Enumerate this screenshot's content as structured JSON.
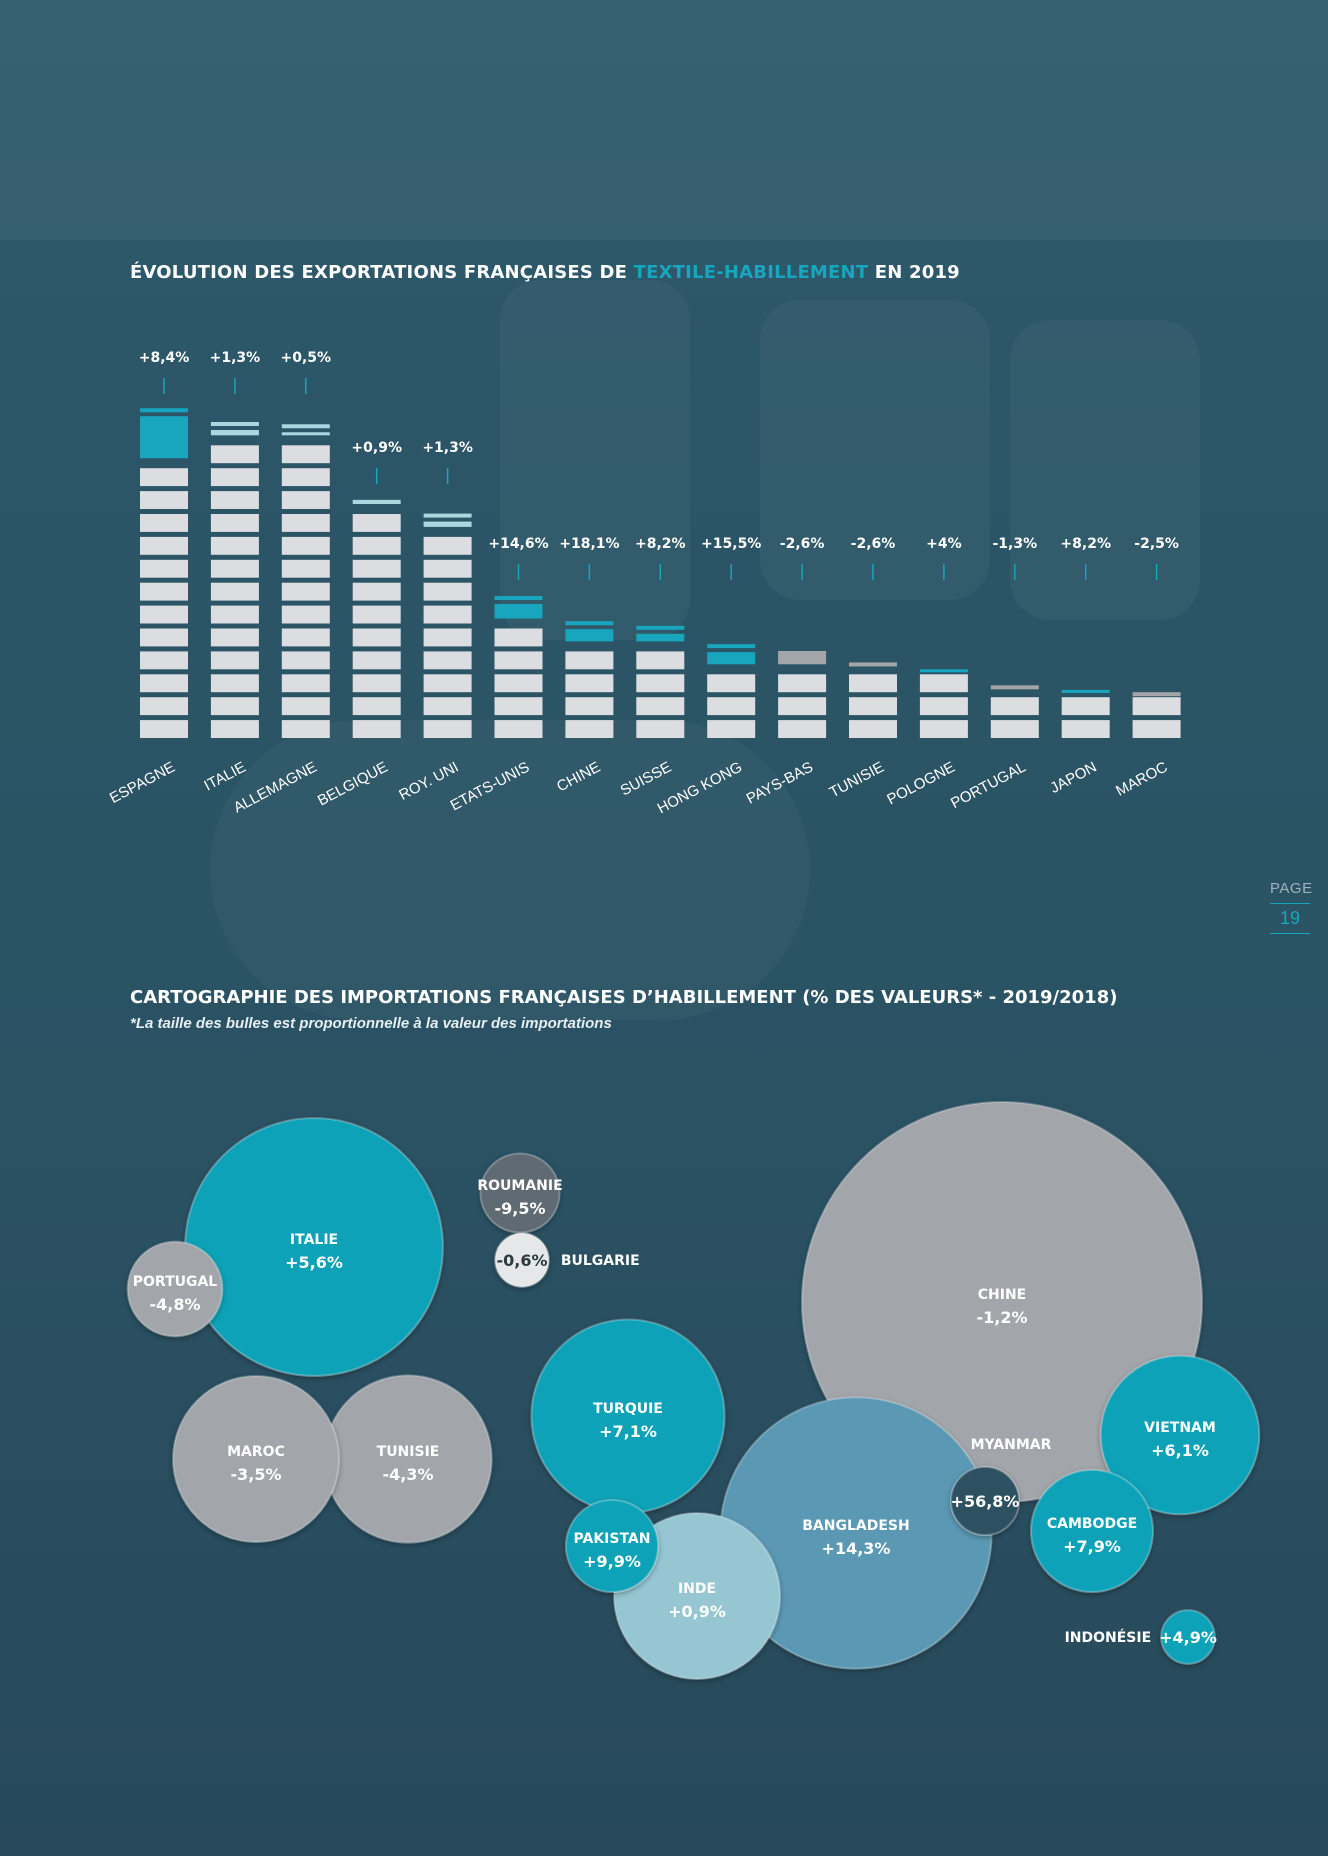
{
  "export_chart": {
    "title_prefix": "ÉVOLUTION DES EXPORTATIONS FRANÇAISES DE ",
    "title_accent": "TEXTILE-HABILLEMENT",
    "title_suffix": " EN 2019"
  },
  "import_map": {
    "title": "CARTOGRAPHIE DES IMPORTATIONS FRANÇAISES D’HABILLEMENT (% DES VALEURS* - 2019/2018)",
    "note": "*La taille des bulles est proportionnelle à la valeur des importations"
  },
  "page": {
    "label": "PAGE",
    "number": "19"
  },
  "colors": {
    "accent": "#17a6bd",
    "bar_segment": "#dcdde0",
    "bar_increase": "#17a6bd",
    "bar_increase_light": "#a9d7df",
    "bar_decrease": "#a3a5a9",
    "bubble_teal": "#0fa2b7",
    "bubble_gray": "#a2a5aa",
    "bubble_blue": "#5a98b3",
    "bubble_light": "#95c6d2",
    "bubble_dark": "#5f6a73",
    "bubble_white": "#e6e7e9",
    "bubble_navy": "#2f5162"
  },
  "chart_data": [
    {
      "type": "bar",
      "title": "ÉVOLUTION DES EXPORTATIONS FRANÇAISES DE TEXTILE-HABILLEMENT EN 2019",
      "categories": [
        "ESPAGNE",
        "ITALIE",
        "ALLEMAGNE",
        "BELGIQUE",
        "ROY. UNI",
        "ETATS-UNIS",
        "CHINE",
        "SUISSE",
        "HONG KONG",
        "PAYS-BAS",
        "TUNISIE",
        "POLOGNE",
        "PORTUGAL",
        "JAPON",
        "MAROC"
      ],
      "values": [
        14.4,
        13.8,
        13.7,
        10.4,
        9.8,
        6.2,
        5.1,
        4.9,
        4.1,
        3.8,
        3.3,
        3.0,
        2.3,
        2.1,
        2.0
      ],
      "change_labels": [
        "+8,4%",
        "+1,3%",
        "+0,5%",
        "+0,9%",
        "+1,3%",
        "+14,6%",
        "+18,1%",
        "+8,2%",
        "+15,5%",
        "-2,6%",
        "-2,6%",
        "+4%",
        "-1,3%",
        "+8,2%",
        "-2,5%"
      ],
      "changes": [
        8.4,
        1.3,
        0.5,
        0.9,
        1.3,
        14.6,
        18.1,
        8.2,
        15.5,
        -2.6,
        -2.6,
        4,
        -1.3,
        8.2,
        -2.5
      ],
      "ylim": [
        0,
        15
      ],
      "grid": false,
      "legend": "none"
    },
    {
      "type": "bubble",
      "title": "CARTOGRAPHIE DES IMPORTATIONS FRANÇAISES D’HABILLEMENT (% DES VALEURS* - 2019/2018)",
      "bubbles": [
        {
          "name": "CHINE",
          "change": "-1,2%",
          "value": 100,
          "color": "gray",
          "label_side": "inside"
        },
        {
          "name": "ITALIE",
          "change": "+5,6%",
          "value": 41.5,
          "color": "teal",
          "label_side": "inside"
        },
        {
          "name": "BANGLADESH",
          "change": "+14,3%",
          "value": 46,
          "color": "blue",
          "label_side": "inside"
        },
        {
          "name": "TURQUIE",
          "change": "+7,1%",
          "value": 23.3,
          "color": "teal",
          "label_side": "inside"
        },
        {
          "name": "INDE",
          "change": "+0,9%",
          "value": 17.2,
          "color": "light",
          "label_side": "inside"
        },
        {
          "name": "MAROC",
          "change": "-3,5%",
          "value": 17.2,
          "color": "gray",
          "label_side": "inside"
        },
        {
          "name": "TUNISIE",
          "change": "-4,3%",
          "value": 17.5,
          "color": "gray",
          "label_side": "inside"
        },
        {
          "name": "VIETNAM",
          "change": "+6,1%",
          "value": 15.7,
          "color": "teal",
          "label_side": "inside"
        },
        {
          "name": "CAMBODGE",
          "change": "+7,9%",
          "value": 9.3,
          "color": "teal",
          "label_side": "inside"
        },
        {
          "name": "PAKISTAN",
          "change": "+9,9%",
          "value": 5.3,
          "color": "teal",
          "label_side": "inside"
        },
        {
          "name": "PORTUGAL",
          "change": "-4,8%",
          "value": 5.6,
          "color": "gray",
          "label_side": "inside"
        },
        {
          "name": "ROUMANIE",
          "change": "-9,5%",
          "value": 3.9,
          "color": "dark",
          "label_side": "inside"
        },
        {
          "name": "MYANMAR",
          "change": "+56,8%",
          "value": 2.9,
          "color": "navy",
          "label_side": "above"
        },
        {
          "name": "BULGARIE",
          "change": "-0,6%",
          "value": 1.8,
          "color": "white",
          "label_side": "right"
        },
        {
          "name": "INDONÉSIE",
          "change": "+4,9%",
          "value": 1.8,
          "color": "teal",
          "label_side": "left"
        }
      ],
      "legend": "none"
    }
  ]
}
